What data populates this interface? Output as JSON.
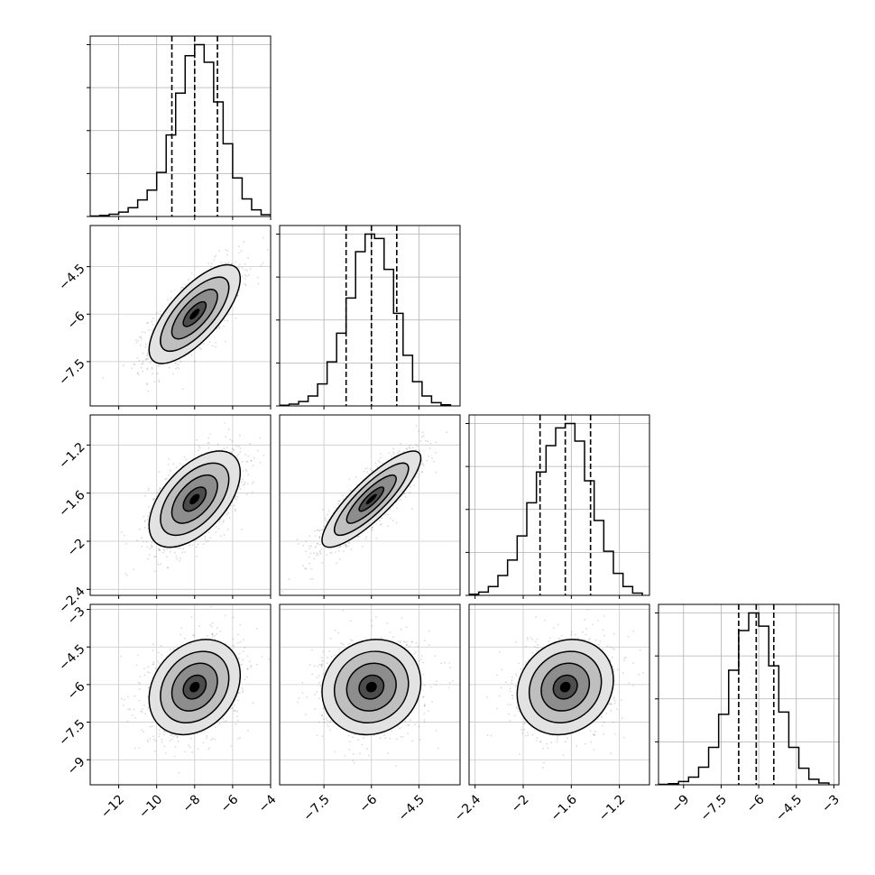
{
  "figure": {
    "type": "corner-plot",
    "params": [
      {
        "ticks": [
          -12,
          -10,
          -8,
          -6,
          -4
        ],
        "range": [
          -13.5,
          -4.0
        ]
      },
      {
        "ticks": [
          -7.5,
          -6.0,
          -4.5
        ],
        "range": [
          -8.9,
          -3.2
        ]
      },
      {
        "ticks": [
          -2.4,
          -2.0,
          -1.6,
          -1.2
        ],
        "range": [
          -2.45,
          -0.95
        ]
      },
      {
        "ticks": [
          -9.0,
          -7.5,
          -6.0,
          -4.5,
          -3.0
        ],
        "range": [
          -10.0,
          -2.8
        ]
      }
    ]
  },
  "chart_data": {
    "type": "corner",
    "grid": true,
    "quantile_lines": "dashed",
    "marginals": [
      {
        "param_index": 0,
        "x_range": [
          -13.5,
          -4.0
        ],
        "quantiles": [
          -9.2,
          -8.0,
          -6.8
        ],
        "bins": [
          {
            "x0": -13.5,
            "x1": -13.0,
            "count": 2
          },
          {
            "x0": -13.0,
            "x1": -12.5,
            "count": 5
          },
          {
            "x0": -12.5,
            "x1": -12.0,
            "count": 10
          },
          {
            "x0": -12.0,
            "x1": -11.5,
            "count": 20
          },
          {
            "x0": -11.5,
            "x1": -11.0,
            "count": 40
          },
          {
            "x0": -11.0,
            "x1": -10.5,
            "count": 75
          },
          {
            "x0": -10.5,
            "x1": -10.0,
            "count": 120
          },
          {
            "x0": -10.0,
            "x1": -9.5,
            "count": 200
          },
          {
            "x0": -9.5,
            "x1": -9.0,
            "count": 370
          },
          {
            "x0": -9.0,
            "x1": -8.5,
            "count": 560
          },
          {
            "x0": -8.5,
            "x1": -8.0,
            "count": 730
          },
          {
            "x0": -8.0,
            "x1": -7.5,
            "count": 780
          },
          {
            "x0": -7.5,
            "x1": -7.0,
            "count": 700
          },
          {
            "x0": -7.0,
            "x1": -6.5,
            "count": 520
          },
          {
            "x0": -6.5,
            "x1": -6.0,
            "count": 330
          },
          {
            "x0": -6.0,
            "x1": -5.5,
            "count": 175
          },
          {
            "x0": -5.5,
            "x1": -5.0,
            "count": 80
          },
          {
            "x0": -5.0,
            "x1": -4.5,
            "count": 30
          },
          {
            "x0": -4.5,
            "x1": -4.0,
            "count": 8
          }
        ]
      },
      {
        "param_index": 1,
        "x_range": [
          -8.9,
          -3.2
        ],
        "quantiles": [
          -6.8,
          -6.0,
          -5.2
        ],
        "bins": [
          {
            "x0": -8.9,
            "x1": -8.6,
            "count": 3
          },
          {
            "x0": -8.6,
            "x1": -8.3,
            "count": 8
          },
          {
            "x0": -8.3,
            "x1": -8.0,
            "count": 20
          },
          {
            "x0": -8.0,
            "x1": -7.7,
            "count": 45
          },
          {
            "x0": -7.7,
            "x1": -7.4,
            "count": 100
          },
          {
            "x0": -7.4,
            "x1": -7.1,
            "count": 200
          },
          {
            "x0": -7.1,
            "x1": -6.8,
            "count": 330
          },
          {
            "x0": -6.8,
            "x1": -6.5,
            "count": 490
          },
          {
            "x0": -6.5,
            "x1": -6.2,
            "count": 700
          },
          {
            "x0": -6.2,
            "x1": -5.9,
            "count": 780
          },
          {
            "x0": -5.9,
            "x1": -5.6,
            "count": 760
          },
          {
            "x0": -5.6,
            "x1": -5.3,
            "count": 620
          },
          {
            "x0": -5.3,
            "x1": -5.0,
            "count": 420
          },
          {
            "x0": -5.0,
            "x1": -4.7,
            "count": 230
          },
          {
            "x0": -4.7,
            "x1": -4.4,
            "count": 110
          },
          {
            "x0": -4.4,
            "x1": -4.1,
            "count": 45
          },
          {
            "x0": -4.1,
            "x1": -3.8,
            "count": 15
          },
          {
            "x0": -3.8,
            "x1": -3.5,
            "count": 5
          }
        ]
      },
      {
        "param_index": 2,
        "x_range": [
          -2.45,
          -0.95
        ],
        "quantiles": [
          -1.86,
          -1.65,
          -1.44
        ],
        "bins": [
          {
            "x0": -2.45,
            "x1": -2.37,
            "count": 5
          },
          {
            "x0": -2.37,
            "x1": -2.29,
            "count": 15
          },
          {
            "x0": -2.29,
            "x1": -2.21,
            "count": 40
          },
          {
            "x0": -2.21,
            "x1": -2.13,
            "count": 90
          },
          {
            "x0": -2.13,
            "x1": -2.05,
            "count": 160
          },
          {
            "x0": -2.05,
            "x1": -1.97,
            "count": 270
          },
          {
            "x0": -1.97,
            "x1": -1.89,
            "count": 420
          },
          {
            "x0": -1.89,
            "x1": -1.81,
            "count": 560
          },
          {
            "x0": -1.81,
            "x1": -1.73,
            "count": 680
          },
          {
            "x0": -1.73,
            "x1": -1.65,
            "count": 760
          },
          {
            "x0": -1.65,
            "x1": -1.57,
            "count": 780
          },
          {
            "x0": -1.57,
            "x1": -1.49,
            "count": 700
          },
          {
            "x0": -1.49,
            "x1": -1.41,
            "count": 520
          },
          {
            "x0": -1.41,
            "x1": -1.33,
            "count": 340
          },
          {
            "x0": -1.33,
            "x1": -1.25,
            "count": 200
          },
          {
            "x0": -1.25,
            "x1": -1.17,
            "count": 100
          },
          {
            "x0": -1.17,
            "x1": -1.09,
            "count": 40
          },
          {
            "x0": -1.09,
            "x1": -1.01,
            "count": 10
          }
        ]
      },
      {
        "param_index": 3,
        "x_range": [
          -10.0,
          -2.8
        ],
        "quantiles": [
          -6.8,
          -6.1,
          -5.4
        ],
        "bins": [
          {
            "x0": -10.0,
            "x1": -9.6,
            "count": 2
          },
          {
            "x0": -9.6,
            "x1": -9.2,
            "count": 5
          },
          {
            "x0": -9.2,
            "x1": -8.8,
            "count": 15
          },
          {
            "x0": -8.8,
            "x1": -8.4,
            "count": 35
          },
          {
            "x0": -8.4,
            "x1": -8.0,
            "count": 80
          },
          {
            "x0": -8.0,
            "x1": -7.6,
            "count": 170
          },
          {
            "x0": -7.6,
            "x1": -7.2,
            "count": 320
          },
          {
            "x0": -7.2,
            "x1": -6.8,
            "count": 520
          },
          {
            "x0": -6.8,
            "x1": -6.4,
            "count": 700
          },
          {
            "x0": -6.4,
            "x1": -6.0,
            "count": 780
          },
          {
            "x0": -6.0,
            "x1": -5.6,
            "count": 720
          },
          {
            "x0": -5.6,
            "x1": -5.2,
            "count": 540
          },
          {
            "x0": -5.2,
            "x1": -4.8,
            "count": 330
          },
          {
            "x0": -4.8,
            "x1": -4.4,
            "count": 170
          },
          {
            "x0": -4.4,
            "x1": -4.0,
            "count": 75
          },
          {
            "x0": -4.0,
            "x1": -3.6,
            "count": 25
          },
          {
            "x0": -3.6,
            "x1": -3.2,
            "count": 8
          }
        ]
      }
    ],
    "joint": [
      {
        "x_param": 0,
        "y_param": 1,
        "mean": [
          -8.0,
          -6.0
        ],
        "sd": [
          1.2,
          0.78
        ],
        "corr": 0.72,
        "contour_levels": [
          0.5,
          1.0,
          1.5,
          2.0
        ]
      },
      {
        "x_param": 0,
        "y_param": 2,
        "mean": [
          -8.0,
          -1.65
        ],
        "sd": [
          1.2,
          0.2
        ],
        "corr": 0.55,
        "contour_levels": [
          0.5,
          1.0,
          1.5,
          2.0
        ]
      },
      {
        "x_param": 1,
        "y_param": 2,
        "mean": [
          -6.0,
          -1.65
        ],
        "sd": [
          0.78,
          0.2
        ],
        "corr": 0.85,
        "contour_levels": [
          0.5,
          1.0,
          1.5,
          2.0
        ]
      },
      {
        "x_param": 0,
        "y_param": 3,
        "mean": [
          -8.0,
          -6.1
        ],
        "sd": [
          1.2,
          0.95
        ],
        "corr": 0.25,
        "contour_levels": [
          0.5,
          1.0,
          1.5,
          2.0
        ]
      },
      {
        "x_param": 1,
        "y_param": 3,
        "mean": [
          -6.0,
          -6.1
        ],
        "sd": [
          0.78,
          0.95
        ],
        "corr": 0.1,
        "contour_levels": [
          0.5,
          1.0,
          1.5,
          2.0
        ]
      },
      {
        "x_param": 2,
        "y_param": 3,
        "mean": [
          -1.65,
          -6.1
        ],
        "sd": [
          0.2,
          0.95
        ],
        "corr": 0.15,
        "contour_levels": [
          0.5,
          1.0,
          1.5,
          2.0
        ]
      }
    ]
  }
}
